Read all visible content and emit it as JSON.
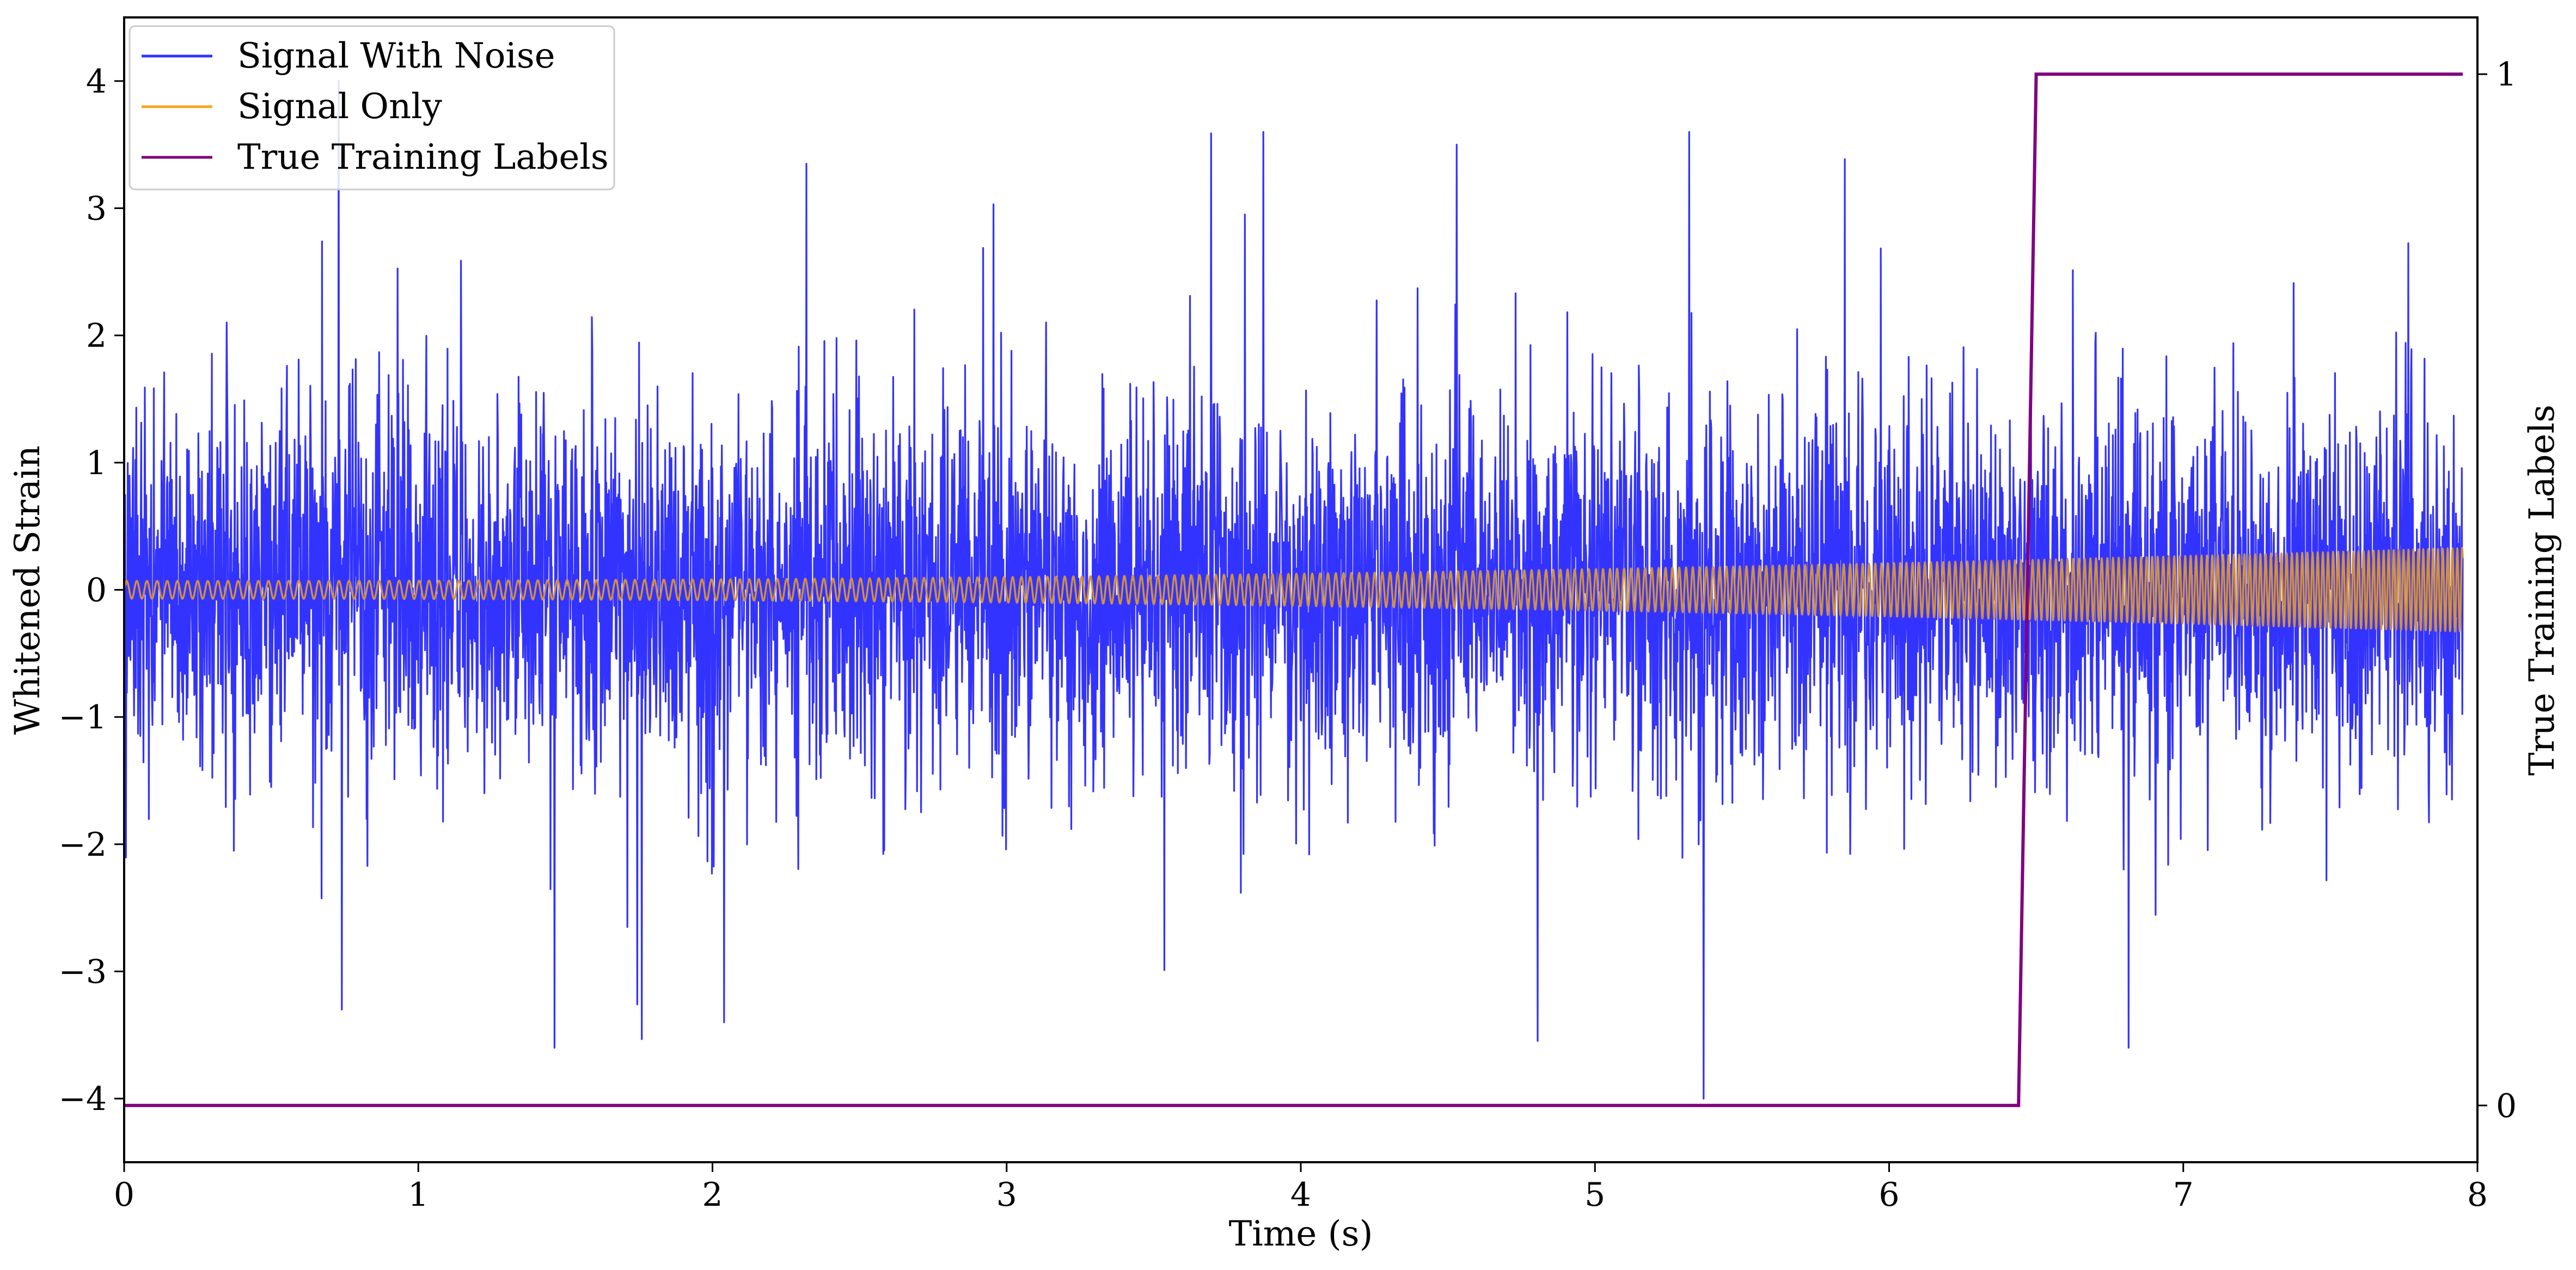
{
  "chart_data": {
    "type": "line",
    "xlabel": "Time (s)",
    "ylabel": "Whitened Strain",
    "y2label": "True Training Labels",
    "xlim": [
      0,
      8
    ],
    "ylim": [
      -4.5,
      4.5
    ],
    "y2lim": [
      -0.055,
      1.055
    ],
    "xticks": [
      0,
      1,
      2,
      3,
      4,
      5,
      6,
      7,
      8
    ],
    "yticks": [
      -4,
      -3,
      -2,
      -1,
      0,
      1,
      2,
      3,
      4
    ],
    "y2ticks": [
      0,
      1
    ],
    "legend_position": "top-left",
    "legend": [
      "Signal With Noise",
      "Signal Only",
      "True Training Labels"
    ],
    "series": [
      {
        "name": "Signal With Noise",
        "axis": "left",
        "color": "#3333ff",
        "x_range": [
          0,
          7.95
        ],
        "amplitude_range": [
          -4.0,
          4.0
        ],
        "notable_peaks": [
          {
            "x": 0.73,
            "y": 4.0
          },
          {
            "x": 4.53,
            "y": 3.5
          },
          {
            "x": 2.32,
            "y": 3.35
          },
          {
            "x": 2.04,
            "y": -3.4
          },
          {
            "x": 0.74,
            "y": -3.3
          },
          {
            "x": 5.37,
            "y": -4.0
          }
        ]
      },
      {
        "name": "Signal Only",
        "axis": "left",
        "color": "#f5a623",
        "x_range": [
          0,
          7.95
        ],
        "amplitude_start": 0.07,
        "amplitude_end": 0.33
      },
      {
        "name": "True Training Labels",
        "axis": "right",
        "color": "#800080",
        "x": [
          0,
          6.44,
          6.5,
          7.95
        ],
        "y": [
          0,
          0,
          1,
          1
        ]
      }
    ]
  }
}
